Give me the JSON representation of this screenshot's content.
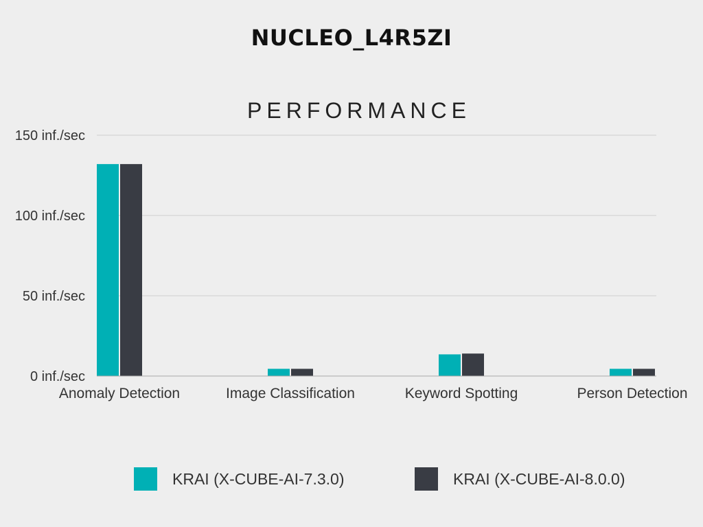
{
  "chart_data": {
    "type": "bar",
    "title": "NUCLEO_L4R5ZI",
    "subtitle": "PERFORMANCE",
    "categories": [
      "Anomaly Detection",
      "Image Classification",
      "Keyword Spotting",
      "Person Detection"
    ],
    "series": [
      {
        "name": "KRAI (X-CUBE-AI-7.3.0)",
        "color": "#00b0b5",
        "values": [
          132,
          4.5,
          13.5,
          4.5
        ]
      },
      {
        "name": "KRAI (X-CUBE-AI-8.0.0)",
        "color": "#393c44",
        "values": [
          132,
          4.5,
          14,
          4.5
        ]
      }
    ],
    "yticks": [
      "0 inf./sec",
      "50 inf./sec",
      "100 inf./sec",
      "150 inf./sec"
    ],
    "ytick_values": [
      0,
      50,
      100,
      150
    ],
    "ylim": [
      0,
      150
    ],
    "grid": true,
    "legend_position": "bottom"
  }
}
